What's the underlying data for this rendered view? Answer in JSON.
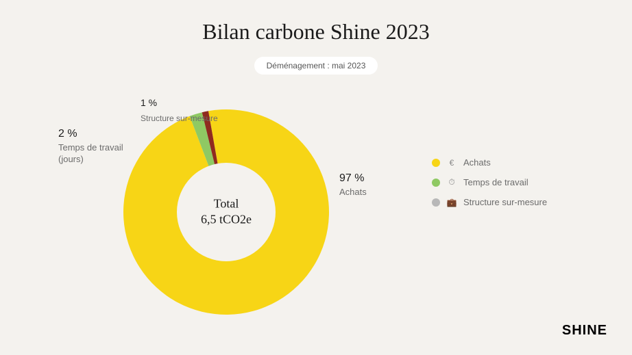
{
  "title": "Bilan carbone Shine 2023",
  "subtitle": "Déménagement : mai 2023",
  "center": {
    "line1": "Total",
    "line2": "6,5 tCO2e"
  },
  "brand": "SHINE",
  "chart": {
    "type": "donut",
    "background_color": "#f4f2ee",
    "inner_radius_pct": 48,
    "slices": [
      {
        "key": "achats",
        "label": "Achats",
        "pct_label": "97 %",
        "value": 97,
        "color": "#f7d516"
      },
      {
        "key": "temps",
        "label": "Temps de travail",
        "pct_label": "2 %",
        "sublabel": "(jours)",
        "value": 2,
        "color": "#8fc963"
      },
      {
        "key": "structure",
        "label": "Structure sur-mesure",
        "pct_label": "1 %",
        "value": 1,
        "color": "#8f2a1f"
      }
    ]
  },
  "legend": [
    {
      "icon": "€",
      "label": "Achats",
      "color": "#f7d516"
    },
    {
      "icon": "⏱",
      "label": "Temps de travail",
      "color": "#8fc963"
    },
    {
      "icon": "💼",
      "label": "Structure sur-mesure",
      "color": "#b8b8b8"
    }
  ]
}
